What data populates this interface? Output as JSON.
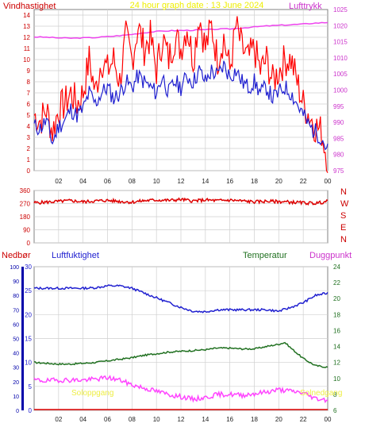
{
  "header": {
    "title": "24 hour graph date : 13 June 2024",
    "wind_label": "Vindhastighet",
    "pressure_label": "Lufttrykk"
  },
  "lower_header": {
    "precip_label": "Nedbør",
    "humidity_label": "Luftfuktighet",
    "temperature_label": "Temperatur",
    "dewpoint_label": "Duggpunkt"
  },
  "annotations": {
    "sunrise": "Soloppgang",
    "sunset": "Solnedgang",
    "precip_axis_mm": "mm"
  },
  "colors": {
    "wind_gust": "#ff0000",
    "wind_avg": "#2020d0",
    "pressure": "#ee44ee",
    "direction": "#dd0000",
    "humidity": "#2020d0",
    "temperature": "#207020",
    "dewpoint": "#ff44ff",
    "precip": "#dd0000",
    "solar_label": "#eeee44",
    "title": "#eeee00",
    "grid": "#cfcfcf"
  },
  "chart_data": [
    {
      "type": "line",
      "id": "wind_pressure",
      "title": "24 hour graph date : 13 June 2024",
      "x_ticks": [
        "02",
        "04",
        "06",
        "08",
        "10",
        "12",
        "14",
        "16",
        "18",
        "20",
        "22",
        "00"
      ],
      "ylabel": "Vindhastighet",
      "ylim": [
        0,
        14.5
      ],
      "y_ticks": [
        0,
        1,
        2,
        3,
        4,
        5,
        6,
        7,
        8,
        9,
        10,
        11,
        12,
        13,
        14
      ],
      "y2label": "Lufttrykk",
      "y2lim": [
        975,
        1025
      ],
      "y2_ticks": [
        975,
        980,
        985,
        990,
        995,
        1000,
        1005,
        1010,
        1015,
        1020,
        1025
      ],
      "grid": true,
      "series": [
        {
          "name": "Vindhastighet",
          "axis": "y",
          "x": [
            0,
            0.5,
            1,
            1.5,
            2,
            2.5,
            3,
            3.5,
            4,
            4.5,
            5,
            5.5,
            6,
            6.5,
            7,
            7.5,
            8,
            8.5,
            9,
            9.5,
            10,
            10.5,
            11,
            11.5,
            12,
            12.5,
            13,
            13.5,
            14,
            14.5,
            15,
            15.5,
            16,
            16.5,
            17,
            17.5,
            18,
            18.5,
            19,
            19.5,
            20,
            20.5,
            21,
            21.5,
            22,
            22.5,
            23,
            23.5,
            24
          ],
          "values": [
            5,
            4.5,
            5.5,
            3.5,
            5.5,
            6,
            7,
            6,
            7,
            10,
            7,
            10,
            9,
            10,
            8,
            12,
            10,
            13,
            11,
            12,
            9,
            12,
            10,
            12,
            11,
            13,
            10,
            14,
            11,
            13,
            10,
            12,
            9,
            13,
            11,
            10,
            11,
            9,
            10,
            8,
            9,
            10,
            10,
            8,
            6,
            5,
            4,
            3.5,
            1
          ]
        },
        {
          "name": "gust",
          "axis": "y",
          "x": [
            0,
            0.5,
            1,
            1.5,
            2,
            2.5,
            3,
            3.5,
            4,
            4.5,
            5,
            5.5,
            6,
            6.5,
            7,
            7.5,
            8,
            8.5,
            9,
            9.5,
            10,
            10.5,
            11,
            11.5,
            12,
            12.5,
            13,
            13.5,
            14,
            14.5,
            15,
            15.5,
            16,
            16.5,
            17,
            17.5,
            18,
            18.5,
            19,
            19.5,
            20,
            20.5,
            21,
            21.5,
            22,
            22.5,
            23,
            23.5,
            24
          ],
          "values": [
            4,
            3.8,
            4.5,
            2.5,
            4,
            4.5,
            5.5,
            5,
            5.5,
            7,
            6,
            7,
            7.5,
            6.5,
            7,
            8,
            7.5,
            8.5,
            8,
            7.5,
            7,
            8.5,
            7,
            8,
            7.5,
            8.5,
            8,
            9,
            8,
            9,
            8.5,
            9.5,
            8.5,
            9,
            8,
            7.5,
            8,
            7,
            7.5,
            6.5,
            7,
            7.5,
            7,
            6,
            5,
            4,
            3.5,
            3,
            1.8
          ]
        },
        {
          "name": "Lufttrykk",
          "axis": "y2",
          "x": [
            0,
            1,
            2,
            3,
            4,
            5,
            6,
            7,
            8,
            9,
            10,
            11,
            12,
            13,
            14,
            15,
            16,
            17,
            18,
            19,
            20,
            21,
            22,
            23,
            24
          ],
          "values": [
            1016.5,
            1016.4,
            1016.2,
            1016.1,
            1016.2,
            1016.3,
            1016.6,
            1016.9,
            1017.3,
            1017.8,
            1018.2,
            1018.4,
            1018.5,
            1018.6,
            1018.7,
            1018.9,
            1019,
            1019.3,
            1019.6,
            1019.9,
            1020.1,
            1020.3,
            1020.5,
            1020.8,
            1021
          ]
        }
      ]
    },
    {
      "type": "line",
      "id": "wind_direction",
      "x_ticks": [
        "02",
        "04",
        "06",
        "08",
        "10",
        "12",
        "14",
        "16",
        "18",
        "20",
        "22",
        "00"
      ],
      "ylim": [
        0,
        360
      ],
      "y_ticks": [
        0,
        90,
        180,
        270,
        360
      ],
      "compass_labels": [
        "N",
        "W",
        "S",
        "E",
        "N"
      ],
      "grid": true,
      "series": [
        {
          "name": "direction",
          "x": [
            0,
            1,
            2,
            3,
            4,
            5,
            6,
            7,
            8,
            9,
            10,
            11,
            12,
            13,
            14,
            15,
            16,
            17,
            18,
            19,
            20,
            21,
            22,
            23,
            24
          ],
          "values": [
            275,
            280,
            285,
            290,
            282,
            288,
            292,
            285,
            280,
            290,
            295,
            292,
            298,
            288,
            295,
            290,
            294,
            288,
            282,
            286,
            284,
            280,
            275,
            272,
            285
          ]
        }
      ]
    },
    {
      "type": "line",
      "id": "humidity_temperature",
      "x_ticks": [
        "02",
        "04",
        "06",
        "08",
        "10",
        "12",
        "14",
        "16",
        "18",
        "20",
        "22",
        "00"
      ],
      "precip_ylim": [
        0,
        100
      ],
      "precip_ticks": [
        0,
        10,
        20,
        30,
        40,
        50,
        60,
        70,
        80,
        90,
        100
      ],
      "ylabel": "Luftfuktighet",
      "ylim": [
        0,
        30
      ],
      "y_ticks": [
        0,
        5,
        10,
        15,
        20,
        25,
        30
      ],
      "y2label": "Temperatur",
      "y2lim": [
        6,
        24
      ],
      "y2_ticks": [
        6,
        8,
        10,
        12,
        14,
        16,
        18,
        20,
        22,
        24
      ],
      "grid": true,
      "series": [
        {
          "name": "Luftfuktighet",
          "axis": "y",
          "x": [
            0,
            1,
            2,
            3,
            4,
            5,
            6,
            7,
            8,
            9,
            10,
            11,
            12,
            13,
            14,
            15,
            16,
            17,
            18,
            19,
            20,
            21,
            22,
            23,
            24
          ],
          "values": [
            25.5,
            25.5,
            25.5,
            25.5,
            25.5,
            25.6,
            26,
            26,
            25.5,
            24.5,
            23.5,
            22.5,
            21.5,
            20.7,
            20.6,
            21,
            21,
            21,
            21,
            21,
            20.7,
            21.5,
            22.5,
            24,
            24.5
          ]
        },
        {
          "name": "Temperatur",
          "axis": "y2",
          "x": [
            0,
            1,
            2,
            3,
            4,
            5,
            6,
            7,
            8,
            9,
            10,
            11,
            12,
            13,
            14,
            15,
            16,
            17,
            18,
            19,
            20,
            20.5,
            21,
            22,
            23,
            24
          ],
          "values": [
            12,
            11.9,
            11.8,
            11.8,
            11.9,
            12,
            12.2,
            12.4,
            12.6,
            12.9,
            13.1,
            13.3,
            13.4,
            13.5,
            13.6,
            13.8,
            13.8,
            13.7,
            13.7,
            14,
            14.3,
            14.5,
            13.8,
            12.5,
            11.6,
            11.4
          ]
        },
        {
          "name": "Duggpunkt",
          "axis": "y2",
          "x": [
            0,
            1,
            2,
            3,
            4,
            5,
            6,
            7,
            8,
            9,
            10,
            11,
            12,
            13,
            14,
            15,
            16,
            17,
            18,
            19,
            20,
            21,
            22,
            23,
            24
          ],
          "values": [
            9.8,
            9.7,
            9.8,
            9.8,
            9.8,
            9.9,
            10.1,
            9.8,
            9.2,
            8.8,
            8.4,
            8,
            7.7,
            7.4,
            7.6,
            8,
            8,
            7.9,
            8.1,
            8.3,
            8.6,
            8.4,
            8.2,
            7.5,
            7.3
          ]
        },
        {
          "name": "Nedbør",
          "axis": "precip",
          "x": [
            0,
            1,
            2,
            3,
            4,
            5,
            6,
            7,
            7.5,
            24
          ],
          "values": [
            0.5,
            0.5,
            0.5,
            0.5,
            0.5,
            0.5,
            0.5,
            0.5,
            0,
            0
          ]
        }
      ]
    }
  ]
}
